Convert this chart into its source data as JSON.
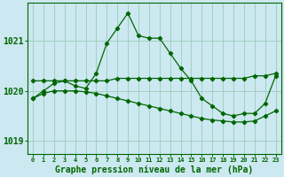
{
  "title": "Graphe pression niveau de la mer (hPa)",
  "background_color": "#cce8f0",
  "grid_color": "#99ccbb",
  "line_color": "#006600",
  "x_labels": [
    "0",
    "1",
    "2",
    "3",
    "4",
    "5",
    "6",
    "7",
    "8",
    "9",
    "10",
    "11",
    "12",
    "13",
    "14",
    "15",
    "16",
    "17",
    "18",
    "19",
    "20",
    "21",
    "22",
    "23"
  ],
  "ylim": [
    1018.75,
    1021.75
  ],
  "yticks": [
    1019,
    1020,
    1021
  ],
  "series_peak": [
    1019.85,
    1020.0,
    1020.15,
    1020.2,
    1020.1,
    1020.05,
    1020.35,
    1020.95,
    1021.25,
    1021.55,
    1021.1,
    1021.05,
    1021.05,
    1020.75,
    1020.45,
    1020.2,
    1019.85,
    1019.7,
    1019.55,
    1019.5,
    1019.55,
    1019.55,
    1019.75,
    1020.3
  ],
  "series_flat": [
    1020.2,
    1020.2,
    1020.2,
    1020.2,
    1020.2,
    1020.2,
    1020.2,
    1020.2,
    1020.25,
    1020.25,
    1020.25,
    1020.25,
    1020.25,
    1020.25,
    1020.25,
    1020.25,
    1020.25,
    1020.25,
    1020.25,
    1020.25,
    1020.25,
    1020.3,
    1020.3,
    1020.35
  ],
  "series_decline": [
    1019.85,
    1019.95,
    1020.0,
    1020.0,
    1020.0,
    1019.98,
    1019.95,
    1019.9,
    1019.85,
    1019.8,
    1019.75,
    1019.7,
    1019.65,
    1019.6,
    1019.55,
    1019.5,
    1019.45,
    1019.42,
    1019.4,
    1019.38,
    1019.38,
    1019.4,
    1019.5,
    1019.6
  ]
}
